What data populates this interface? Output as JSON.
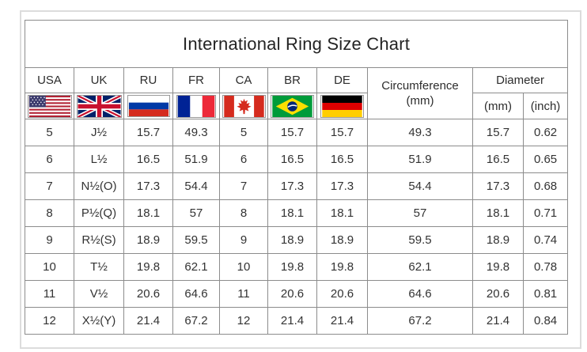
{
  "title": "International Ring Size Chart",
  "colors": {
    "grid_border": "#8c8c8c",
    "outer_frame": "#dcdcdc",
    "text": "#2d2d2d",
    "cell_background": "#ffffff",
    "flag_usa_red": "#B22234",
    "flag_usa_blue": "#3C3B6E",
    "flag_uk_blue": "#012169",
    "flag_uk_red": "#C8102E",
    "flag_ru_blue": "#0039A6",
    "flag_ru_red": "#D52B1E",
    "flag_fr_blue": "#002395",
    "flag_fr_red": "#ED2939",
    "flag_ca_red": "#D52B1E",
    "flag_br_green": "#009B3A",
    "flag_br_yellow": "#FEDF00",
    "flag_br_blue": "#002776",
    "flag_de_red": "#DD0000",
    "flag_de_gold": "#FFCE00"
  },
  "header": {
    "countries": [
      {
        "label": "USA",
        "icon": "usa-flag-icon"
      },
      {
        "label": "UK",
        "icon": "uk-flag-icon"
      },
      {
        "label": "RU",
        "icon": "russia-flag-icon"
      },
      {
        "label": "FR",
        "icon": "france-flag-icon"
      },
      {
        "label": "CA",
        "icon": "canada-flag-icon"
      },
      {
        "label": "BR",
        "icon": "brazil-flag-icon"
      },
      {
        "label": "DE",
        "icon": "germany-flag-icon"
      }
    ],
    "circumference": {
      "label": "Circumference",
      "unit": "(mm)"
    },
    "diameter": {
      "label": "Diameter",
      "units": [
        "(mm)",
        "(inch)"
      ]
    }
  },
  "chart_data": {
    "type": "table",
    "title": "International Ring Size Chart",
    "columns": [
      "USA",
      "UK",
      "RU",
      "FR",
      "CA",
      "BR",
      "DE",
      "Circumference (mm)",
      "Diameter (mm)",
      "Diameter (inch)"
    ],
    "column_keys": [
      "usa",
      "uk",
      "ru",
      "fr",
      "ca",
      "br",
      "de",
      "circumference-mm",
      "diameter-mm",
      "diameter-inch"
    ],
    "rows": [
      [
        "5",
        "J½",
        "15.7",
        "49.3",
        "5",
        "15.7",
        "15.7",
        "49.3",
        "15.7",
        "0.62"
      ],
      [
        "6",
        "L½",
        "16.5",
        "51.9",
        "6",
        "16.5",
        "16.5",
        "51.9",
        "16.5",
        "0.65"
      ],
      [
        "7",
        "N½(O)",
        "17.3",
        "54.4",
        "7",
        "17.3",
        "17.3",
        "54.4",
        "17.3",
        "0.68"
      ],
      [
        "8",
        "P½(Q)",
        "18.1",
        "57",
        "8",
        "18.1",
        "18.1",
        "57",
        "18.1",
        "0.71"
      ],
      [
        "9",
        "R½(S)",
        "18.9",
        "59.5",
        "9",
        "18.9",
        "18.9",
        "59.5",
        "18.9",
        "0.74"
      ],
      [
        "10",
        "T½",
        "19.8",
        "62.1",
        "10",
        "19.8",
        "19.8",
        "62.1",
        "19.8",
        "0.78"
      ],
      [
        "11",
        "V½",
        "20.6",
        "64.6",
        "11",
        "20.6",
        "20.6",
        "64.6",
        "20.6",
        "0.81"
      ],
      [
        "12",
        "X½(Y)",
        "21.4",
        "67.2",
        "12",
        "21.4",
        "21.4",
        "67.2",
        "21.4",
        "0.84"
      ]
    ]
  }
}
